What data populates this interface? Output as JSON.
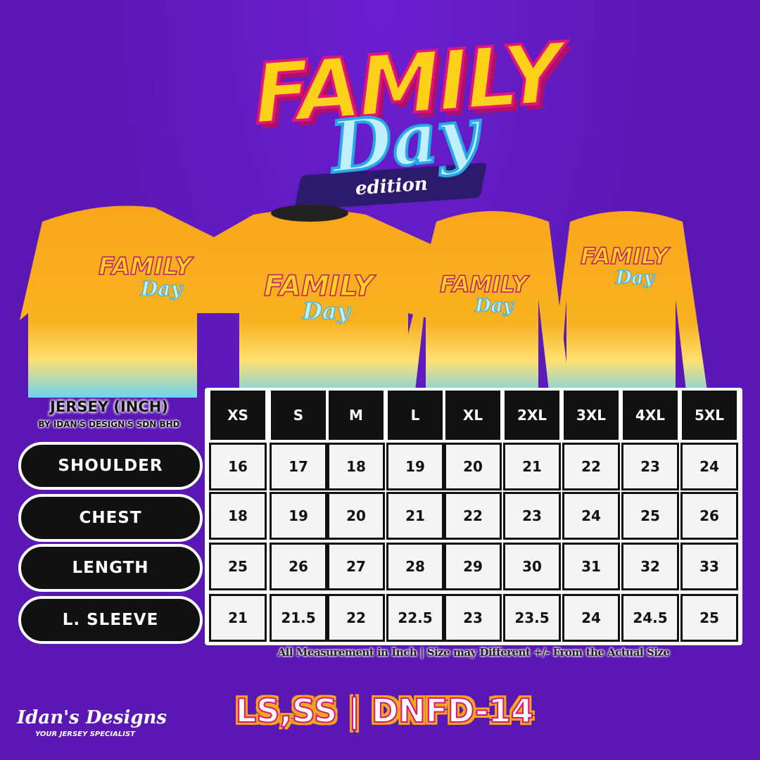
{
  "logo": {
    "line1": "FAMILY",
    "line2": "Day",
    "line3": "edition"
  },
  "shirt_print": {
    "line1": "FAMILY",
    "line2": "Day"
  },
  "table": {
    "title": "JERSEY (INCH)",
    "subtitle": "BY IDAN'S DESIGN'S SDN BHD",
    "sizes": [
      "XS",
      "S",
      "M",
      "L",
      "XL",
      "2XL",
      "3XL",
      "4XL",
      "5XL"
    ],
    "rows": [
      {
        "label": "SHOULDER",
        "values": [
          "16",
          "17",
          "18",
          "19",
          "20",
          "21",
          "22",
          "23",
          "24"
        ]
      },
      {
        "label": "CHEST",
        "values": [
          "18",
          "19",
          "20",
          "21",
          "22",
          "23",
          "24",
          "25",
          "26"
        ]
      },
      {
        "label": "LENGTH",
        "values": [
          "25",
          "26",
          "27",
          "28",
          "29",
          "30",
          "31",
          "32",
          "33"
        ]
      },
      {
        "label": "L. SLEEVE",
        "values": [
          "21",
          "21.5",
          "22",
          "22.5",
          "23",
          "23.5",
          "24",
          "24.5",
          "25"
        ]
      }
    ],
    "note": "All Measurement in Inch | Size may Different +/- From the Actual Size"
  },
  "product_code": "LS,SS | DNFD-14",
  "brand": {
    "name": "Idan's Designs",
    "tagline": "YOUR JERSEY SPECIALIST"
  },
  "colors": {
    "background": "#5a17b3",
    "shirt": "#f7a21b",
    "header_cell": "#111111",
    "accent_pink": "#d4147f"
  }
}
